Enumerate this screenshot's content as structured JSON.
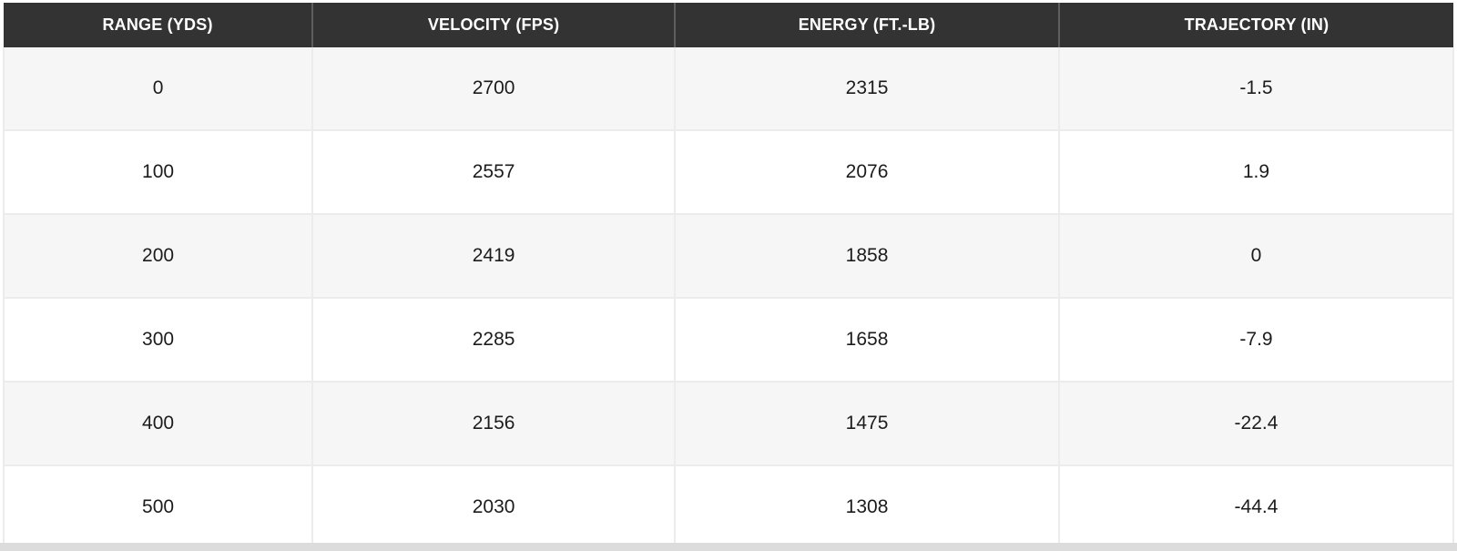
{
  "table": {
    "columns": [
      "RANGE (YDS)",
      "VELOCITY (FPS)",
      "ENERGY (FT.-LB)",
      "TRAJECTORY (IN)"
    ],
    "rows": [
      [
        "0",
        "2700",
        "2315",
        "-1.5"
      ],
      [
        "100",
        "2557",
        "2076",
        "1.9"
      ],
      [
        "200",
        "2419",
        "1858",
        "0"
      ],
      [
        "300",
        "2285",
        "1658",
        "-7.9"
      ],
      [
        "400",
        "2156",
        "1475",
        "-22.4"
      ],
      [
        "500",
        "2030",
        "1308",
        "-44.4"
      ]
    ]
  },
  "chart_data": {
    "type": "table",
    "columns": [
      "RANGE (YDS)",
      "VELOCITY (FPS)",
      "ENERGY (FT.-LB)",
      "TRAJECTORY (IN)"
    ],
    "rows": [
      [
        0,
        2700,
        2315,
        -1.5
      ],
      [
        100,
        2557,
        2076,
        1.9
      ],
      [
        200,
        2419,
        1858,
        0
      ],
      [
        300,
        2285,
        1658,
        -7.9
      ],
      [
        400,
        2156,
        1475,
        -22.4
      ],
      [
        500,
        2030,
        1308,
        -44.4
      ]
    ]
  },
  "colors": {
    "header_bg": "#333333",
    "header_text": "#ffffff",
    "header_divider": "#5e5e5e",
    "row_stripe": "#f6f6f6",
    "row_plain": "#ffffff",
    "cell_border": "#ececec",
    "cell_text": "#1c1c1c",
    "bottom_strip": "#dcdcdc"
  }
}
